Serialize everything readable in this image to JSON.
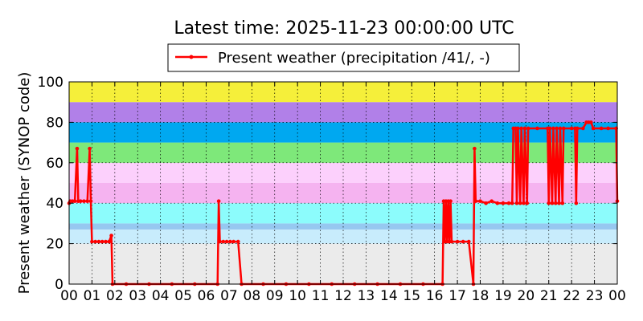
{
  "chart_data": {
    "type": "line",
    "title": "Latest time: 2025-11-23 00:00:00 UTC",
    "ylabel": "Present weather (SYNOP code)",
    "xlabel": "",
    "ylim": [
      0,
      100
    ],
    "xlim": [
      0,
      24
    ],
    "yticks": [
      "0",
      "20",
      "40",
      "60",
      "80",
      "100"
    ],
    "xticks": [
      "00",
      "01",
      "02",
      "03",
      "04",
      "05",
      "06",
      "07",
      "08",
      "09",
      "10",
      "11",
      "12",
      "13",
      "14",
      "15",
      "16",
      "17",
      "18",
      "19",
      "20",
      "21",
      "22",
      "23",
      "00"
    ],
    "grid": true,
    "legend_position": "top-center",
    "bands": [
      {
        "from": 0,
        "to": 20,
        "color": "#ebebeb"
      },
      {
        "from": 20,
        "to": 27,
        "color": "#c8ecfc"
      },
      {
        "from": 27,
        "to": 30,
        "color": "#96c8f0"
      },
      {
        "from": 30,
        "to": 40,
        "color": "#8cfcfc"
      },
      {
        "from": 40,
        "to": 50,
        "color": "#f5b3f0"
      },
      {
        "from": 50,
        "to": 60,
        "color": "#fcd0fc"
      },
      {
        "from": 60,
        "to": 70,
        "color": "#7ee87a"
      },
      {
        "from": 70,
        "to": 80,
        "color": "#00a8f0"
      },
      {
        "from": 80,
        "to": 90,
        "color": "#b180e8"
      },
      {
        "from": 90,
        "to": 100,
        "color": "#f5ef3a"
      }
    ],
    "series": [
      {
        "name": "Present weather (precipitation /41/, -)",
        "color": "#ff0000",
        "points": [
          [
            0.0,
            40
          ],
          [
            0.05,
            41
          ],
          [
            0.15,
            41
          ],
          [
            0.25,
            41
          ],
          [
            0.35,
            67
          ],
          [
            0.4,
            41
          ],
          [
            0.5,
            41
          ],
          [
            0.65,
            41
          ],
          [
            0.8,
            41
          ],
          [
            0.9,
            67
          ],
          [
            0.95,
            41
          ],
          [
            1.0,
            21
          ],
          [
            1.15,
            21
          ],
          [
            1.3,
            21
          ],
          [
            1.45,
            21
          ],
          [
            1.6,
            21
          ],
          [
            1.75,
            21
          ],
          [
            1.85,
            24
          ],
          [
            1.9,
            0
          ],
          [
            2.5,
            0
          ],
          [
            3.5,
            0
          ],
          [
            4.5,
            0
          ],
          [
            5.5,
            0
          ],
          [
            6.5,
            0
          ],
          [
            6.55,
            41
          ],
          [
            6.6,
            21
          ],
          [
            6.75,
            21
          ],
          [
            6.9,
            21
          ],
          [
            7.05,
            21
          ],
          [
            7.2,
            21
          ],
          [
            7.4,
            21
          ],
          [
            7.55,
            0
          ],
          [
            8.5,
            0
          ],
          [
            9.5,
            0
          ],
          [
            10.5,
            0
          ],
          [
            11.5,
            0
          ],
          [
            12.5,
            0
          ],
          [
            13.5,
            0
          ],
          [
            14.5,
            0
          ],
          [
            15.5,
            0
          ],
          [
            16.35,
            0
          ],
          [
            16.4,
            41
          ],
          [
            16.45,
            21
          ],
          [
            16.5,
            41
          ],
          [
            16.55,
            21
          ],
          [
            16.6,
            41
          ],
          [
            16.65,
            21
          ],
          [
            16.7,
            41
          ],
          [
            16.75,
            21
          ],
          [
            17.0,
            21
          ],
          [
            17.25,
            21
          ],
          [
            17.5,
            21
          ],
          [
            17.7,
            0
          ],
          [
            17.75,
            67
          ],
          [
            17.8,
            41
          ],
          [
            18.0,
            41
          ],
          [
            18.25,
            40
          ],
          [
            18.5,
            41
          ],
          [
            18.75,
            40
          ],
          [
            19.0,
            40
          ],
          [
            19.25,
            40
          ],
          [
            19.4,
            40
          ],
          [
            19.45,
            77
          ],
          [
            19.55,
            77
          ],
          [
            19.6,
            40
          ],
          [
            19.65,
            77
          ],
          [
            19.75,
            40
          ],
          [
            19.8,
            77
          ],
          [
            19.9,
            40
          ],
          [
            19.95,
            77
          ],
          [
            20.05,
            40
          ],
          [
            20.1,
            77
          ],
          [
            20.5,
            77
          ],
          [
            20.95,
            77
          ],
          [
            21.0,
            40
          ],
          [
            21.05,
            77
          ],
          [
            21.15,
            40
          ],
          [
            21.2,
            77
          ],
          [
            21.3,
            40
          ],
          [
            21.35,
            77
          ],
          [
            21.45,
            40
          ],
          [
            21.5,
            77
          ],
          [
            21.6,
            40
          ],
          [
            21.65,
            77
          ],
          [
            22.0,
            77
          ],
          [
            22.15,
            77
          ],
          [
            22.2,
            40
          ],
          [
            22.25,
            77
          ],
          [
            22.5,
            77
          ],
          [
            22.65,
            80
          ],
          [
            22.75,
            80
          ],
          [
            22.85,
            80
          ],
          [
            22.95,
            77
          ],
          [
            23.3,
            77
          ],
          [
            23.6,
            77
          ],
          [
            23.95,
            77
          ],
          [
            24.0,
            41
          ]
        ]
      }
    ]
  }
}
